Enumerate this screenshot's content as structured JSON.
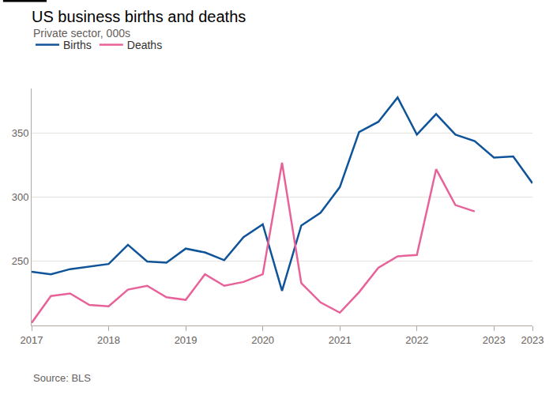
{
  "chart_data": {
    "type": "line",
    "title": "US business births and deaths",
    "subtitle": "Private sector, 000s",
    "source": "Source: BLS",
    "x": [
      2017,
      2017.25,
      2017.5,
      2017.75,
      2018,
      2018.25,
      2018.5,
      2018.75,
      2019,
      2019.25,
      2019.5,
      2019.75,
      2020,
      2020.25,
      2020.5,
      2020.75,
      2021,
      2021.25,
      2021.5,
      2021.75,
      2022,
      2022.25,
      2022.5,
      2022.75,
      2023,
      2023.25,
      2023.5
    ],
    "series": [
      {
        "name": "Births",
        "color": "#0f5499",
        "values": [
          242,
          240,
          244,
          246,
          248,
          263,
          250,
          249,
          260,
          257,
          251,
          269,
          279,
          227,
          278,
          288,
          308,
          351,
          359,
          378,
          349,
          365,
          349,
          344,
          331,
          332,
          311
        ]
      },
      {
        "name": "Deaths",
        "color": "#e8629a",
        "values": [
          202,
          223,
          225,
          216,
          215,
          228,
          231,
          222,
          220,
          240,
          231,
          234,
          240,
          327,
          233,
          218,
          210,
          226,
          245,
          254,
          255,
          322,
          294,
          289,
          null,
          null,
          null
        ]
      }
    ],
    "xlim": [
      2017,
      2023.5
    ],
    "xticks": [
      2017,
      2018,
      2019,
      2020,
      2021,
      2022,
      2023,
      {
        "value": 2023.5,
        "label": "2023"
      }
    ],
    "ylim": [
      200,
      385
    ],
    "yticks": [
      250,
      300,
      350
    ],
    "grid": true,
    "legend": "top left"
  }
}
